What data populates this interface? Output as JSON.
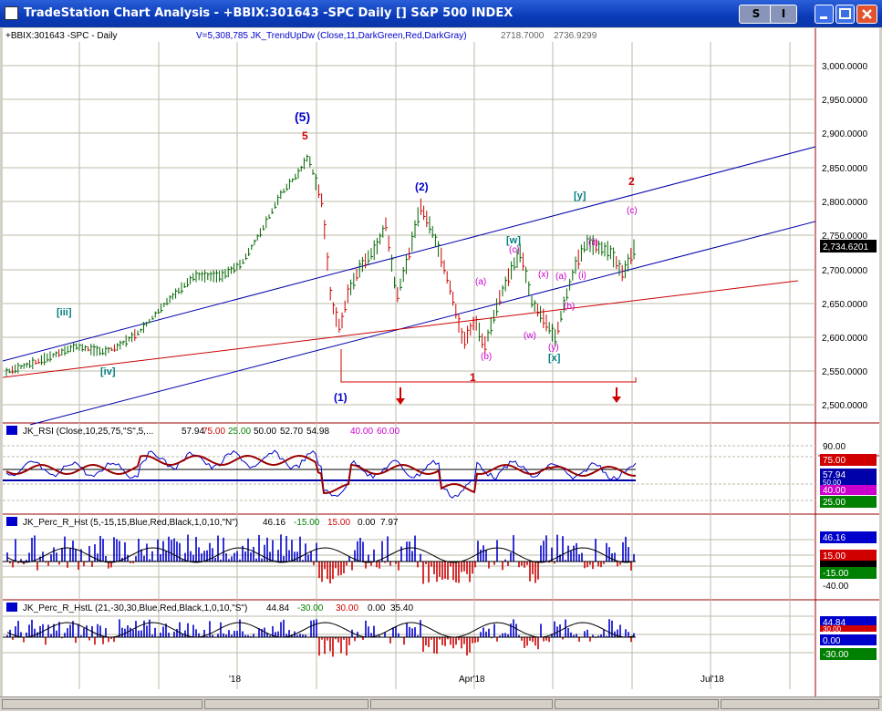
{
  "window": {
    "title": "TradeStation Chart Analysis  - +BBIX:301643 -SPC Daily [] S&P 500 INDEX",
    "btn_s": "S",
    "btn_i": "I",
    "colors": {
      "titlebar": "#0a3ab8",
      "close": "#e2532e"
    }
  },
  "price_panel": {
    "symbol_label": "+BBIX:301643 -SPC - Daily",
    "indicator_label": "V=5,308,785  JK_TrendUpDw (Close,11,DarkGreen,Red,DarkGray)",
    "indicator_val1": "2718.7000",
    "indicator_val2": "2736.9299",
    "last_price": "2,734.6201",
    "y_ticks": [
      "3,000.0000",
      "2,950.0000",
      "2,900.0000",
      "2,850.0000",
      "2,800.0000",
      "2,750.0000",
      "2,700.0000",
      "2,650.0000",
      "2,600.0000",
      "2,550.0000",
      "2,500.0000"
    ],
    "wave_labels": {
      "w5_paren": "(5)",
      "w5": "5",
      "w2_paren": "(2)",
      "w1_paren": "(1)",
      "w1": "1",
      "w2": "2",
      "iii": "[iii]",
      "iv": "[iv]",
      "y_bracket": "[y]",
      "w_bracket": "[w]",
      "x_bracket": "[x]",
      "c": "(c)",
      "c2": "(c)",
      "a": "(a)",
      "a2": "(a)",
      "b": "(b)",
      "b2": "(b)",
      "wl": "(w)",
      "xl": "(x)",
      "yl": "(y)",
      "i": "(i)",
      "ii": "(ii)"
    }
  },
  "rsi_panel": {
    "label": "JK_RSI (Close,10,25,75,\"S\",5,...",
    "v1": "57.94",
    "v2": "75.00",
    "v3": "25.00",
    "v4": "50.00",
    "v5": "52.70",
    "v6": "54.98",
    "v7": "40.00",
    "v8": "60.00",
    "tick_90": "90.00",
    "badge_75": "75.00",
    "badge_57": "57.94",
    "badge_50": "50.00",
    "badge_40": "40.00",
    "badge_25": "25.00"
  },
  "perc_panel": {
    "label": "JK_Perc_R_Hst (5,-15,15,Blue,Red,Black,1,0,10,\"N\")",
    "v1": "46.16",
    "v2": "-15.00",
    "v3": "15.00",
    "v4": "0.00",
    "v5": "7.97",
    "badge_46": "46.16",
    "badge_15": "15.00",
    "badge_m15": "-15.00",
    "tick_m40": "-40.00"
  },
  "percl_panel": {
    "label": "JK_Perc_R_HstL (21,-30,30,Blue,Red,Black,1,0,10,\"S\")",
    "v1": "44.84",
    "v2": "-30.00",
    "v3": "30.00",
    "v4": "0.00",
    "v5": "35.40",
    "badge_44": "44.84",
    "badge_30": "30.00",
    "badge_0": "0.00",
    "badge_m30": "-30.00"
  },
  "x_axis": {
    "ticks": [
      "'18",
      "Apr'18",
      "Jul'18"
    ]
  }
}
